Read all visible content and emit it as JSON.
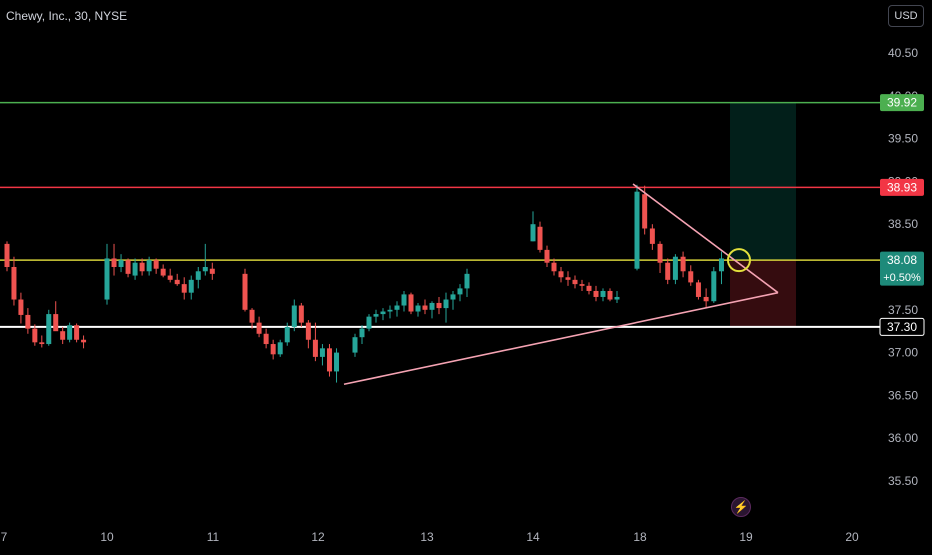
{
  "header": {
    "symbol_title": "Chewy, Inc., 30, NYSE",
    "currency_button": "USD"
  },
  "chart_data": {
    "type": "candlestick",
    "ylim": [
      35.3,
      40.7
    ],
    "y_ticks": [
      35.5,
      36.0,
      36.5,
      37.0,
      37.5,
      38.0,
      38.5,
      39.0,
      39.5,
      40.0,
      40.5
    ],
    "y_tick_labels": [
      "35.50",
      "36.00",
      "36.50",
      "37.00",
      "37.50",
      "38.00",
      "38.50",
      "39.00",
      "39.50",
      "40.00",
      "40.50"
    ],
    "x_tick_labels": [
      "7",
      "10",
      "11",
      "12",
      "13",
      "14",
      "18",
      "19",
      "20"
    ],
    "horizontal_levels": [
      {
        "value": 39.92,
        "label": "39.92",
        "color": "#4caf50"
      },
      {
        "value": 38.93,
        "label": "38.93",
        "color": "#f23645"
      },
      {
        "value": 38.08,
        "label": "38.08",
        "sublabel": "+0.50%",
        "color": "#d4d03a"
      },
      {
        "value": 37.3,
        "label": "37.30",
        "color": "#ffffff"
      }
    ],
    "trend_lines": [
      {
        "from": {
          "bar": 0,
          "price": 38.97
        },
        "to": {
          "bar": 1,
          "price": 37.7
        }
      },
      {
        "from": {
          "bar": 2,
          "price": 36.63
        },
        "to": {
          "bar": 1,
          "price": 37.7
        }
      }
    ],
    "position_tool": {
      "entry": 38.08,
      "target": 39.92,
      "stop": 37.3
    },
    "candles": [
      [
        38.27,
        38.3,
        37.95,
        38.0
      ],
      [
        38.0,
        38.12,
        37.55,
        37.62
      ],
      [
        37.62,
        37.7,
        37.34,
        37.44
      ],
      [
        37.44,
        37.52,
        37.22,
        37.28
      ],
      [
        37.28,
        37.33,
        37.08,
        37.12
      ],
      [
        37.12,
        37.2,
        37.06,
        37.1
      ],
      [
        37.1,
        37.5,
        37.08,
        37.45
      ],
      [
        37.45,
        37.6,
        37.3,
        37.25
      ],
      [
        37.25,
        37.3,
        37.1,
        37.15
      ],
      [
        37.15,
        37.35,
        37.12,
        37.32
      ],
      [
        37.32,
        37.34,
        37.12,
        37.15
      ],
      [
        37.15,
        37.2,
        37.05,
        37.12
      ],
      [
        37.62,
        38.27,
        37.56,
        38.1
      ],
      [
        38.1,
        38.27,
        37.9,
        38.0
      ],
      [
        38.0,
        38.15,
        37.94,
        38.08
      ],
      [
        38.08,
        38.1,
        37.88,
        37.92
      ],
      [
        37.9,
        38.1,
        37.85,
        38.05
      ],
      [
        38.05,
        38.1,
        37.9,
        37.95
      ],
      [
        37.95,
        38.12,
        37.9,
        38.08
      ],
      [
        38.08,
        38.1,
        37.92,
        37.98
      ],
      [
        37.98,
        38.03,
        37.88,
        37.9
      ],
      [
        37.9,
        37.98,
        37.82,
        37.85
      ],
      [
        37.85,
        37.92,
        37.78,
        37.8
      ],
      [
        37.8,
        37.88,
        37.62,
        37.7
      ],
      [
        37.7,
        37.9,
        37.62,
        37.85
      ],
      [
        37.85,
        38.0,
        37.75,
        37.95
      ],
      [
        37.95,
        38.27,
        37.9,
        38.0
      ],
      [
        37.98,
        38.05,
        37.85,
        37.92
      ],
      [
        37.92,
        37.98,
        37.48,
        37.5
      ],
      [
        37.5,
        37.52,
        37.28,
        37.35
      ],
      [
        37.35,
        37.42,
        37.18,
        37.22
      ],
      [
        37.22,
        37.28,
        37.05,
        37.1
      ],
      [
        37.1,
        37.15,
        36.92,
        36.98
      ],
      [
        36.98,
        37.15,
        36.95,
        37.12
      ],
      [
        37.12,
        37.35,
        37.08,
        37.3
      ],
      [
        37.3,
        37.62,
        37.25,
        37.55
      ],
      [
        37.55,
        37.58,
        37.3,
        37.35
      ],
      [
        37.35,
        37.38,
        37.05,
        37.15
      ],
      [
        37.15,
        37.35,
        36.9,
        36.95
      ],
      [
        36.95,
        37.1,
        36.85,
        37.05
      ],
      [
        37.05,
        37.1,
        36.72,
        36.78
      ],
      [
        36.78,
        37.05,
        36.65,
        37.0
      ],
      [
        37.0,
        37.22,
        36.95,
        37.18
      ],
      [
        37.18,
        37.32,
        37.1,
        37.28
      ],
      [
        37.28,
        37.45,
        37.25,
        37.42
      ],
      [
        37.42,
        37.5,
        37.35,
        37.45
      ],
      [
        37.45,
        37.52,
        37.38,
        37.48
      ],
      [
        37.48,
        37.55,
        37.4,
        37.5
      ],
      [
        37.5,
        37.6,
        37.42,
        37.55
      ],
      [
        37.55,
        37.72,
        37.48,
        37.68
      ],
      [
        37.68,
        37.7,
        37.45,
        37.48
      ],
      [
        37.48,
        37.58,
        37.42,
        37.55
      ],
      [
        37.55,
        37.62,
        37.45,
        37.5
      ],
      [
        37.5,
        37.6,
        37.4,
        37.58
      ],
      [
        37.58,
        37.65,
        37.45,
        37.52
      ],
      [
        37.52,
        37.7,
        37.35,
        37.62
      ],
      [
        37.62,
        37.72,
        37.5,
        37.68
      ],
      [
        37.68,
        37.8,
        37.6,
        37.75
      ],
      [
        37.75,
        37.98,
        37.65,
        37.92
      ],
      [
        38.3,
        38.65,
        38.3,
        38.5
      ],
      [
        38.47,
        38.53,
        38.17,
        38.2
      ],
      [
        38.2,
        38.25,
        38.0,
        38.05
      ],
      [
        38.05,
        38.1,
        37.9,
        37.95
      ],
      [
        37.95,
        38.0,
        37.82,
        37.88
      ],
      [
        37.88,
        37.95,
        37.78,
        37.85
      ],
      [
        37.85,
        37.9,
        37.75,
        37.8
      ],
      [
        37.8,
        37.85,
        37.72,
        37.78
      ],
      [
        37.78,
        37.82,
        37.68,
        37.72
      ],
      [
        37.72,
        37.78,
        37.6,
        37.65
      ],
      [
        37.65,
        37.75,
        37.6,
        37.72
      ],
      [
        37.72,
        37.75,
        37.6,
        37.62
      ],
      [
        37.62,
        37.72,
        37.58,
        37.65
      ],
      [
        37.98,
        38.96,
        37.96,
        38.88
      ],
      [
        38.85,
        38.95,
        38.38,
        38.45
      ],
      [
        38.45,
        38.5,
        38.2,
        38.27
      ],
      [
        38.27,
        38.3,
        37.93,
        38.05
      ],
      [
        38.05,
        38.1,
        37.8,
        37.85
      ],
      [
        37.85,
        38.15,
        37.8,
        38.12
      ],
      [
        38.12,
        38.18,
        37.88,
        37.95
      ],
      [
        37.95,
        38.02,
        37.78,
        37.82
      ],
      [
        37.82,
        37.85,
        37.62,
        37.65
      ],
      [
        37.65,
        37.75,
        37.52,
        37.6
      ],
      [
        37.6,
        38.0,
        37.58,
        37.95
      ],
      [
        37.95,
        38.18,
        37.8,
        38.1
      ]
    ]
  },
  "toolbar": {
    "lightning_icon": "lightning-icon"
  }
}
